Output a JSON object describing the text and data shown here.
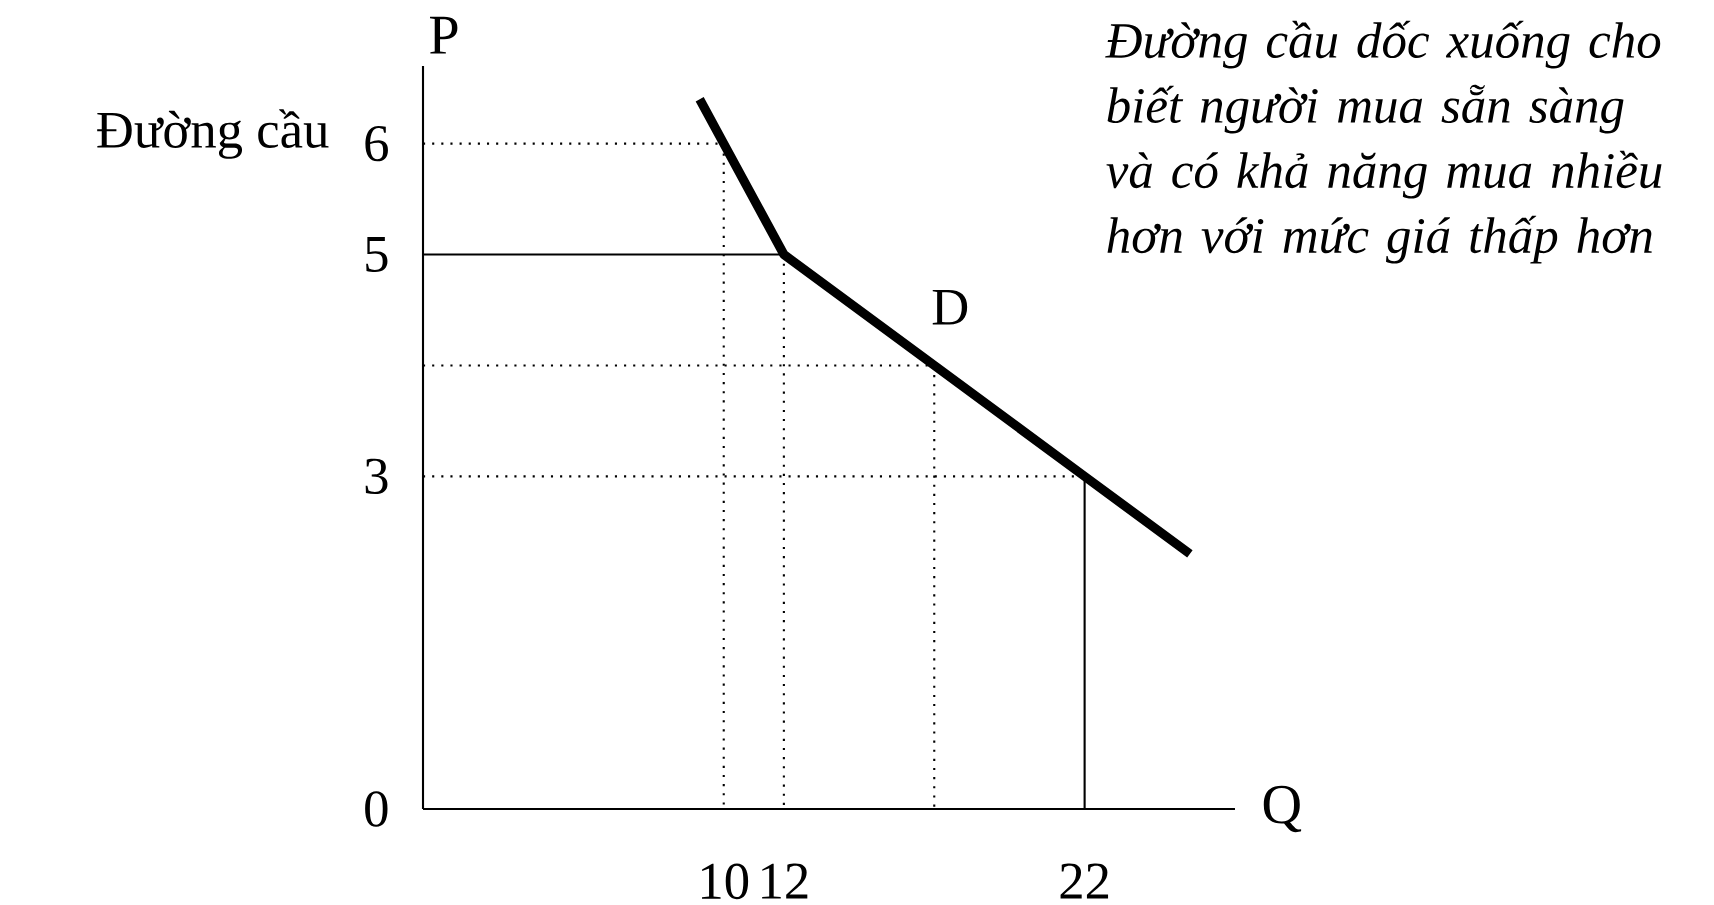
{
  "chart_data": {
    "type": "line",
    "title": "Đường cầu",
    "xlabel": "Q",
    "ylabel": "P",
    "xlim": [
      0,
      27
    ],
    "ylim": [
      0,
      6.7
    ],
    "xticks": [
      10,
      12,
      22
    ],
    "yticks": [
      0,
      3,
      5,
      6
    ],
    "grid": false,
    "marker": "none",
    "series": [
      {
        "color": "#000000",
        "line_style": "dotted",
        "x": [
          0,
          10,
          10
        ],
        "values": [
          6,
          6,
          0
        ]
      },
      {
        "color": "#000000",
        "line_style": "solid",
        "x": [
          0,
          12
        ],
        "values": [
          5,
          5
        ]
      },
      {
        "color": "#000000",
        "line_style": "dotted",
        "x": [
          12,
          12
        ],
        "values": [
          5,
          0
        ]
      },
      {
        "color": "#000000",
        "line_style": "dotted",
        "x": [
          0,
          17,
          17
        ],
        "values": [
          4,
          4,
          0
        ]
      },
      {
        "color": "#000000",
        "line_style": "dotted",
        "x": [
          0,
          22
        ],
        "values": [
          3,
          3
        ]
      },
      {
        "color": "#000000",
        "line_style": "solid",
        "x": [
          22,
          22
        ],
        "values": [
          3,
          0
        ]
      },
      {
        "name": "D",
        "color": "#000000",
        "line_style": "solid",
        "x": [
          9.2,
          10,
          12,
          17,
          22,
          25.5
        ],
        "values": [
          6.4,
          6,
          5,
          4,
          3,
          2.3
        ]
      }
    ],
    "annotations": [
      "Đường cầu dốc xuống cho biết người mua sẵn sàng và có khả năng mua nhiều hơn với mức giá thấp hơn"
    ]
  }
}
